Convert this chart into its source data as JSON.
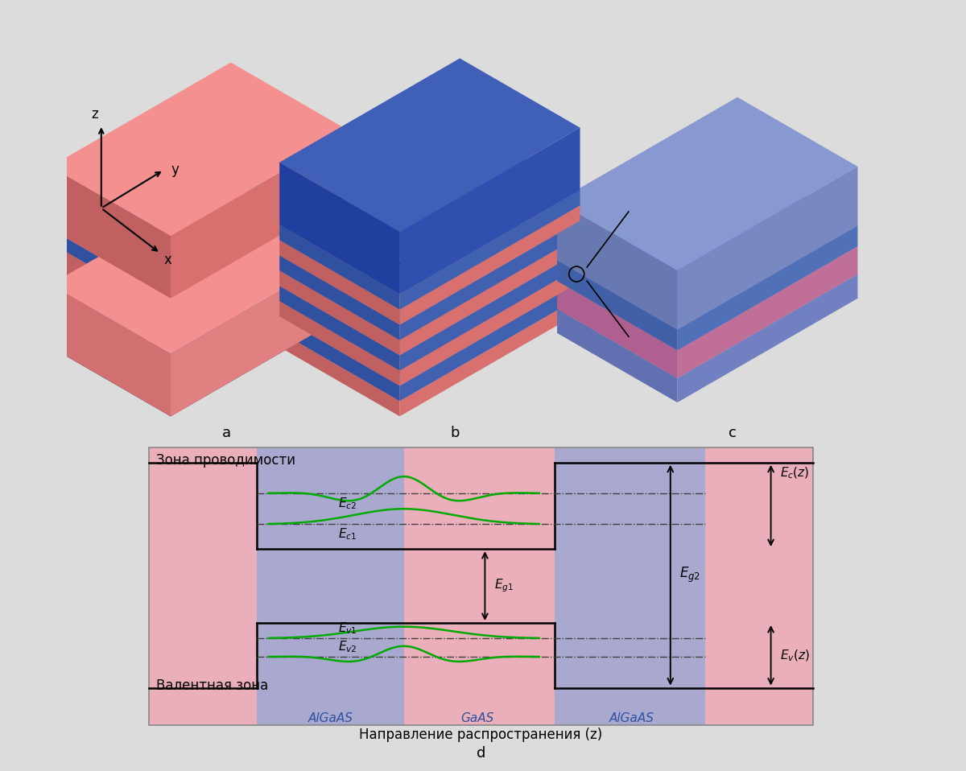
{
  "bg_color": "#dcdcdc",
  "pink_top": "#f08080",
  "pink_mid": "#e8a0a0",
  "pink_base": "#f0b0b0",
  "pink_side_l": "#d07070",
  "pink_side_r": "#c06060",
  "blue_top": "#4a6fb5",
  "blue_mid": "#6080c0",
  "blue_side_l": "#3a5fa5",
  "blue_side_r": "#2a4f95",
  "blue_cap_top": "#3a5fb0",
  "algaas_bg": "#9090c0",
  "gaas_bg": "#e899ae",
  "outer_bg": "#f0a8b8",
  "purple_mid": "#a090c8",
  "teal": "#30b0b0",
  "green_wave": "#00aa00",
  "black": "#000000",
  "dark_blue_text": "#3050a0",
  "gray_bg": "#dcdcdc",
  "title_cond": "Зона проводимости",
  "title_val": "Валентная зона",
  "dir_label": "Направление распространения (z)"
}
